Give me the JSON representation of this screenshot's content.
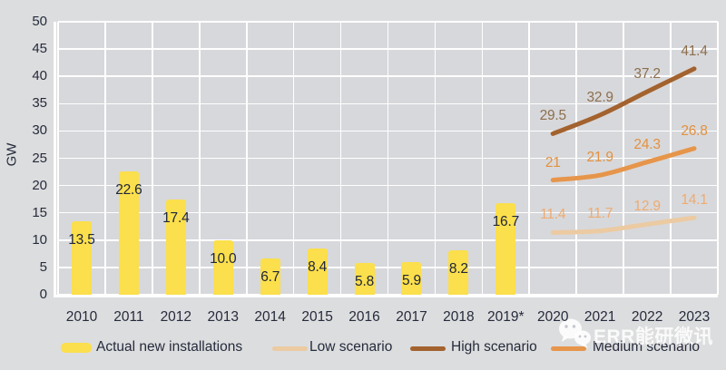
{
  "watermark": {
    "text": "ERR能研微讯",
    "logo": "wechat-icon"
  },
  "legend": [
    {
      "label": "Actual new installations",
      "swatch": "bar",
      "color": "#fbdf4c"
    },
    {
      "label": "Low scenario",
      "swatch": "line",
      "color": "#eccaa2"
    },
    {
      "label": "High scenario",
      "swatch": "line",
      "color": "#a3622e"
    },
    {
      "label": "Medium scenario",
      "swatch": "line",
      "color": "#e6954a"
    }
  ],
  "chart_data": {
    "type": "bar+line",
    "title": "",
    "xlabel": "",
    "ylabel": "GW",
    "ylim": [
      0,
      50
    ],
    "ytick_step": 5,
    "grid": true,
    "legend_position": "bottom",
    "plot_bg": "#d7d8db",
    "grid_color": "#ffffff",
    "axis_text_color": "#262b3c",
    "categories": [
      "2010",
      "2011",
      "2012",
      "2013",
      "2014",
      "2015",
      "2016",
      "2017",
      "2018",
      "2019*",
      "2020",
      "2021",
      "2022",
      "2023"
    ],
    "bar_series": {
      "name": "Actual new installations",
      "color": "#fbdf4c",
      "start_index": 0,
      "values": [
        13.5,
        22.6,
        17.4,
        10.0,
        6.7,
        8.4,
        5.8,
        5.9,
        8.2,
        16.7
      ],
      "labels": [
        "13.5",
        "22.6",
        "17.4",
        "10.0",
        "6.7",
        "8.4",
        "5.8",
        "5.9",
        "8.2",
        "16.7"
      ],
      "label_color": "#20263a"
    },
    "line_series": [
      {
        "name": "Low scenario",
        "color": "#eccaa2",
        "label_color": "#efab70",
        "start_index": 10,
        "values": [
          11.4,
          11.7,
          12.9,
          14.1
        ],
        "labels": [
          "11.4",
          "11.7",
          "12.9",
          "14.1"
        ]
      },
      {
        "name": "High scenario",
        "color": "#a3622e",
        "label_color": "#8d6f4e",
        "start_index": 10,
        "values": [
          29.5,
          32.9,
          37.2,
          41.4
        ],
        "labels": [
          "29.5",
          "32.9",
          "37.2",
          "41.4"
        ]
      },
      {
        "name": "Medium scenario",
        "color": "#e6954a",
        "label_color": "#e2913f",
        "start_index": 10,
        "values": [
          21,
          21.9,
          24.3,
          26.8
        ],
        "labels": [
          "21",
          "21.9",
          "24.3",
          "26.8"
        ]
      }
    ]
  }
}
